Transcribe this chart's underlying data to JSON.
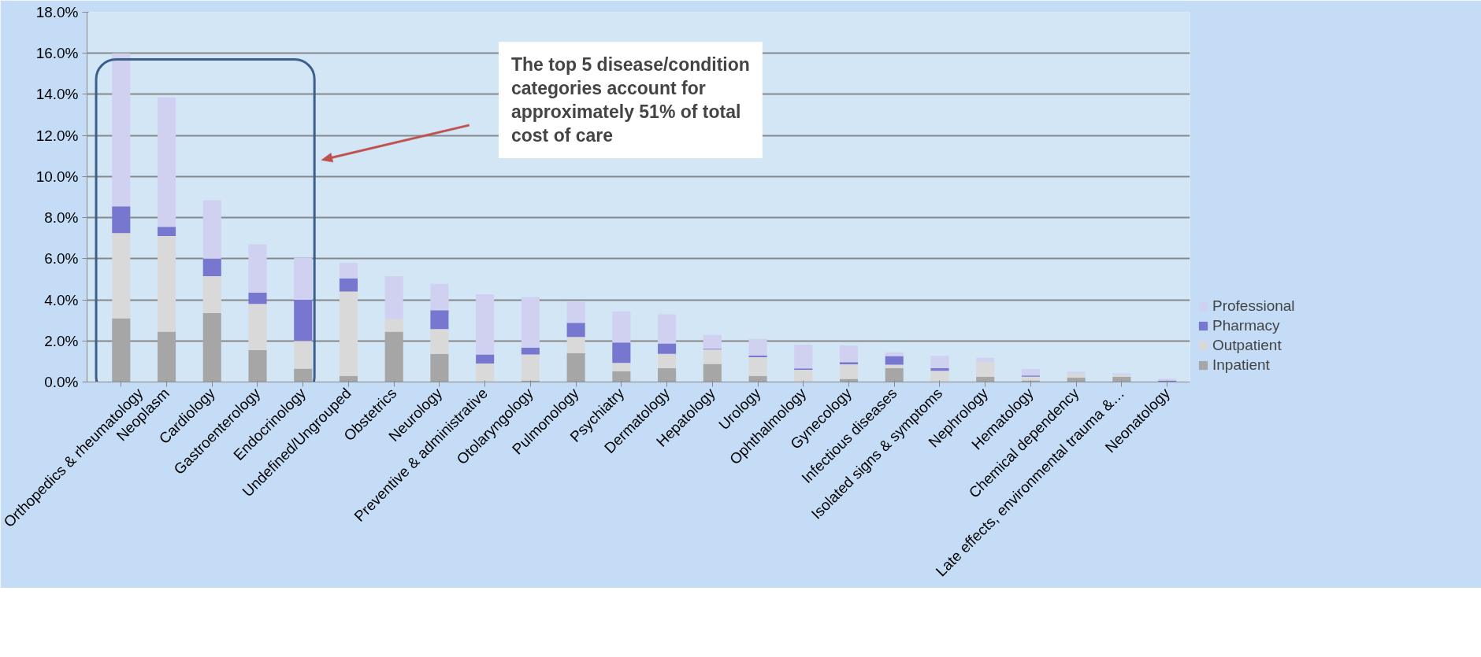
{
  "chart_data": {
    "type": "bar",
    "stacked": true,
    "categories": [
      "Orthopedics & rheumatology",
      "Neoplasm",
      "Cardiology",
      "Gastroenterology",
      "Endocrinology",
      "Undefined/Ungrouped",
      "Obstetrics",
      "Neurology",
      "Preventive & administrative",
      "Otolaryngology",
      "Pulmonology",
      "Psychiatry",
      "Dermatology",
      "Hepatology",
      "Urology",
      "Ophthalmology",
      "Gynecology",
      "Infectious diseases",
      "Isolated signs & symptoms",
      "Nephrology",
      "Hematology",
      "Chemical dependency",
      "Late effects, environmental trauma &…",
      "Neonatology"
    ],
    "series": [
      {
        "name": "Inpatient",
        "color": "#a6a6a6",
        "values": [
          3.1,
          2.45,
          3.35,
          1.55,
          0.65,
          0.3,
          2.45,
          1.37,
          0,
          0.07,
          1.41,
          0.52,
          0.67,
          0.88,
          0.3,
          0,
          0.15,
          0.68,
          0,
          0.26,
          0.08,
          0.22,
          0.25,
          0
        ]
      },
      {
        "name": "Outpatient",
        "color": "#d9d9d9",
        "values": [
          4.15,
          4.65,
          1.8,
          2.25,
          1.35,
          4.1,
          0.6,
          1.21,
          0.9,
          1.27,
          0.78,
          0.41,
          0.7,
          0.7,
          0.91,
          0.59,
          0.71,
          0.16,
          0.55,
          0.71,
          0.18,
          0.19,
          0.09,
          0.02
        ]
      },
      {
        "name": "Pharmacy",
        "color": "#7777d0",
        "values": [
          1.3,
          0.45,
          0.85,
          0.55,
          2.0,
          0.65,
          0,
          0.91,
          0.44,
          0.34,
          0.69,
          0.99,
          0.51,
          0.04,
          0.08,
          0.07,
          0.11,
          0.42,
          0.13,
          0,
          0.06,
          null,
          0,
          0.05
        ]
      },
      {
        "name": "Professional",
        "color": "#d0d0f0",
        "values": [
          7.45,
          6.3,
          2.85,
          2.35,
          2.05,
          0.75,
          2.1,
          1.29,
          2.93,
          2.46,
          1.02,
          1.52,
          1.41,
          0.67,
          0.81,
          1.16,
          0.81,
          0.19,
          0.59,
          0.21,
          0.31,
          0.09,
          0.08,
          0.09
        ]
      }
    ],
    "ylim": [
      0,
      18
    ],
    "yticks": [
      {
        "value": 0,
        "label": "0.0%"
      },
      {
        "value": 2,
        "label": "2.0%"
      },
      {
        "value": 4,
        "label": "4.0%"
      },
      {
        "value": 6,
        "label": "6.0%"
      },
      {
        "value": 8,
        "label": "8.0%"
      },
      {
        "value": 10,
        "label": "10.0%"
      },
      {
        "value": 12,
        "label": "12.0%"
      },
      {
        "value": 14,
        "label": "14.0%"
      },
      {
        "value": 16,
        "label": "16.0%"
      },
      {
        "value": 18,
        "label": "18.0%"
      }
    ],
    "grid": "y",
    "legend": "right",
    "annotations": [
      "The top 5 disease/condition\ncategories account for\napproximately 51% of total\ncost of care"
    ]
  }
}
